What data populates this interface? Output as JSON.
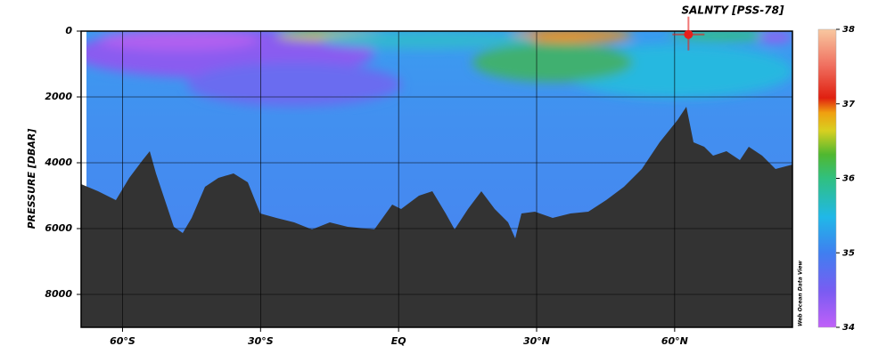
{
  "chart_data": {
    "type": "heatmap",
    "title": "SALNTY [PSS-78]",
    "y_label": "PRESSURE [DBAR]",
    "watermark": "Web Ocean Data View",
    "xlim": [
      -69,
      85.6
    ],
    "xticks": [
      {
        "value": -60,
        "label": "60°S"
      },
      {
        "value": -30,
        "label": "30°S"
      },
      {
        "value": 0,
        "label": "EQ"
      },
      {
        "value": 30,
        "label": "30°N"
      },
      {
        "value": 60,
        "label": "60°N"
      }
    ],
    "ylim": [
      0,
      9000
    ],
    "yticks": [
      0,
      2000,
      4000,
      6000,
      8000
    ],
    "grid": true,
    "colorbar_lim": [
      34,
      38
    ],
    "colorbar_ticks": [
      34,
      35,
      36,
      37,
      38
    ],
    "station": {
      "x": 63,
      "y": 100,
      "color": "#e8201c"
    }
  }
}
